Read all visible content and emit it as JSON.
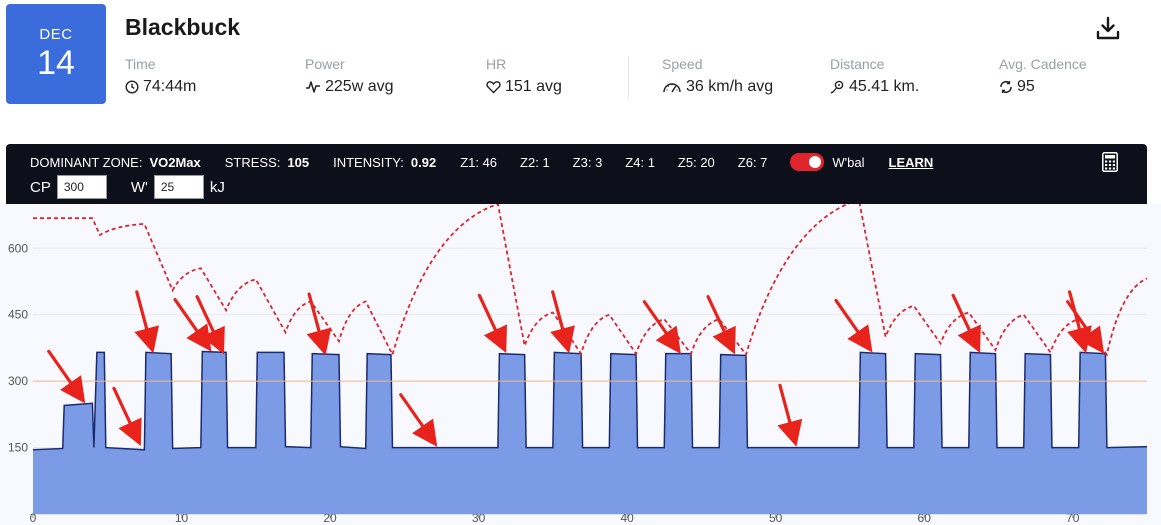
{
  "date": {
    "month": "DEC",
    "day": "14"
  },
  "title": "Blackbuck",
  "icons": {
    "download": "download-icon",
    "calculator": "calculator-icon"
  },
  "stats": {
    "time": {
      "label": "Time",
      "value": "74:44m",
      "icon": "clock-icon"
    },
    "power": {
      "label": "Power",
      "value": "225w avg",
      "icon": "pulse-icon"
    },
    "hr": {
      "label": "HR",
      "value": "151 avg",
      "icon": "heart-icon"
    },
    "speed": {
      "label": "Speed",
      "value": "36 km/h avg",
      "icon": "speedometer-icon"
    },
    "distance": {
      "label": "Distance",
      "value": "45.41 km.",
      "icon": "location-pin-icon"
    },
    "cadence": {
      "label": "Avg. Cadence",
      "value": "95",
      "icon": "cadence-icon"
    }
  },
  "summary": {
    "dominant_zone_label": "DOMINANT ZONE:",
    "dominant_zone": "VO2Max",
    "stress_label": "STRESS:",
    "stress": "105",
    "intensity_label": "INTENSITY:",
    "intensity": "0.92",
    "zones": [
      "Z1: 46",
      "Z2: 1",
      "Z3: 3",
      "Z4: 1",
      "Z5: 20",
      "Z6: 7"
    ],
    "wbal_label": "W'bal",
    "wbal_enabled": true,
    "learn": "LEARN"
  },
  "inputs": {
    "cp_label": "CP",
    "cp_value": "300",
    "w_label": "W'",
    "w_value": "25",
    "w_unit": "kJ"
  },
  "colors": {
    "accent": "#3b6cdb",
    "fill": "#7b9be6",
    "line": "#1c2a6e",
    "wbal": "#e0242c",
    "cp_line": "#f5b98a",
    "arrow": "#e8231c"
  },
  "chart_data": {
    "type": "area",
    "xlim": [
      0,
      75
    ],
    "ylim": [
      0,
      700
    ],
    "x_ticks": [
      0,
      10,
      20,
      30,
      40,
      50,
      60,
      70
    ],
    "y_ticks": [
      150,
      300,
      450,
      600
    ],
    "cp_reference": 300,
    "power_profile": [
      [
        0,
        145
      ],
      [
        2,
        148
      ],
      [
        2.1,
        245
      ],
      [
        4,
        250
      ],
      [
        4.1,
        150
      ],
      [
        4.3,
        365
      ],
      [
        4.8,
        365
      ],
      [
        4.9,
        150
      ],
      [
        7.5,
        145
      ],
      [
        7.6,
        365
      ],
      [
        9.3,
        362
      ],
      [
        9.4,
        148
      ],
      [
        11.3,
        150
      ],
      [
        11.4,
        367
      ],
      [
        13,
        365
      ],
      [
        13.1,
        150
      ],
      [
        15,
        150
      ],
      [
        15.1,
        365
      ],
      [
        16.9,
        365
      ],
      [
        17,
        152
      ],
      [
        18.7,
        150
      ],
      [
        18.8,
        362
      ],
      [
        20.6,
        360
      ],
      [
        20.7,
        152
      ],
      [
        22.4,
        148
      ],
      [
        22.5,
        362
      ],
      [
        24.1,
        360
      ],
      [
        24.2,
        150
      ],
      [
        31.3,
        150
      ],
      [
        31.4,
        362
      ],
      [
        33.1,
        360
      ],
      [
        33.2,
        150
      ],
      [
        35,
        150
      ],
      [
        35.1,
        365
      ],
      [
        36.9,
        362
      ],
      [
        37,
        150
      ],
      [
        38.8,
        150
      ],
      [
        38.9,
        362
      ],
      [
        40.6,
        360
      ],
      [
        40.7,
        150
      ],
      [
        42.5,
        150
      ],
      [
        42.6,
        362
      ],
      [
        44.3,
        362
      ],
      [
        44.4,
        150
      ],
      [
        46.2,
        150
      ],
      [
        46.3,
        360
      ],
      [
        48,
        358
      ],
      [
        48.1,
        150
      ],
      [
        55.6,
        150
      ],
      [
        55.7,
        365
      ],
      [
        57.4,
        362
      ],
      [
        57.5,
        150
      ],
      [
        59.3,
        150
      ],
      [
        59.4,
        362
      ],
      [
        61.1,
        360
      ],
      [
        61.2,
        150
      ],
      [
        63,
        150
      ],
      [
        63.1,
        365
      ],
      [
        64.8,
        362
      ],
      [
        64.9,
        150
      ],
      [
        66.7,
        150
      ],
      [
        66.8,
        362
      ],
      [
        68.5,
        360
      ],
      [
        68.6,
        150
      ],
      [
        70.4,
        150
      ],
      [
        70.5,
        365
      ],
      [
        72.2,
        362
      ],
      [
        72.3,
        150
      ],
      [
        75,
        152
      ]
    ],
    "wbal_profile": [
      [
        0,
        668
      ],
      [
        4,
        668
      ],
      [
        4.5,
        630
      ],
      [
        7.5,
        655
      ],
      [
        9.4,
        505
      ],
      [
        11.3,
        555
      ],
      [
        13,
        460
      ],
      [
        15,
        530
      ],
      [
        17,
        410
      ],
      [
        18.7,
        480
      ],
      [
        20.6,
        390
      ],
      [
        22.4,
        480
      ],
      [
        24.2,
        360
      ],
      [
        31.3,
        700
      ],
      [
        33.1,
        380
      ],
      [
        35,
        455
      ],
      [
        36.9,
        362
      ],
      [
        38.8,
        450
      ],
      [
        40.6,
        362
      ],
      [
        42.5,
        440
      ],
      [
        44.3,
        362
      ],
      [
        46.2,
        440
      ],
      [
        48,
        360
      ],
      [
        55.6,
        710
      ],
      [
        57.4,
        400
      ],
      [
        59.3,
        470
      ],
      [
        61.1,
        385
      ],
      [
        63,
        455
      ],
      [
        64.8,
        370
      ],
      [
        66.7,
        450
      ],
      [
        68.5,
        365
      ],
      [
        70.4,
        440
      ],
      [
        72.3,
        360
      ],
      [
        75,
        532
      ]
    ],
    "annotations": [
      {
        "type": "arrow",
        "tip": [
          3.3,
          260
        ]
      },
      {
        "type": "arrow",
        "tip": [
          7.1,
          165
        ]
      },
      {
        "type": "arrow",
        "tip": [
          8,
          375
        ]
      },
      {
        "type": "arrow",
        "tip": [
          11.8,
          377
        ]
      },
      {
        "type": "arrow",
        "tip": [
          12.7,
          372
        ]
      },
      {
        "type": "arrow",
        "tip": [
          19.6,
          370
        ]
      },
      {
        "type": "arrow",
        "tip": [
          27,
          162
        ]
      },
      {
        "type": "arrow",
        "tip": [
          31.7,
          375
        ]
      },
      {
        "type": "arrow",
        "tip": [
          36,
          375
        ]
      },
      {
        "type": "arrow",
        "tip": [
          43.4,
          372
        ]
      },
      {
        "type": "arrow",
        "tip": [
          47.1,
          372
        ]
      },
      {
        "type": "arrow",
        "tip": [
          51.3,
          164
        ]
      },
      {
        "type": "arrow",
        "tip": [
          56.3,
          375
        ]
      },
      {
        "type": "arrow",
        "tip": [
          63.6,
          375
        ]
      },
      {
        "type": "arrow",
        "tip": [
          70.8,
          375
        ]
      },
      {
        "type": "arrow",
        "tip": [
          71.9,
          372
        ]
      }
    ]
  }
}
